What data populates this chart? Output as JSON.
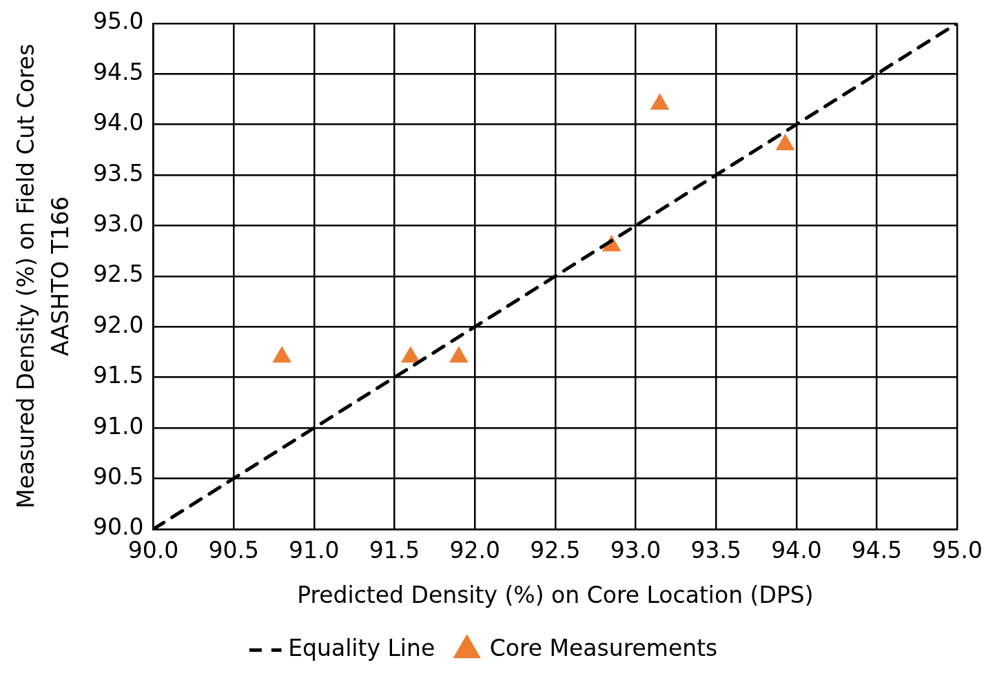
{
  "chart_data": {
    "type": "scatter",
    "xlabel": "Predicted Density (%) on Core Location (DPS)",
    "ylabel": "Measured Density (%) on Field Cut Cores\nAASHTO T166",
    "xlim": [
      90,
      95
    ],
    "ylim": [
      90,
      95
    ],
    "xticks": [
      {
        "value": 90,
        "label": "90.0"
      },
      {
        "value": 90.5,
        "label": "90.5"
      },
      {
        "value": 91,
        "label": "91.0"
      },
      {
        "value": 91.5,
        "label": "91.5"
      },
      {
        "value": 92,
        "label": "92.0"
      },
      {
        "value": 92.5,
        "label": "92.5"
      },
      {
        "value": 93,
        "label": "93.0"
      },
      {
        "value": 93.5,
        "label": "93.5"
      },
      {
        "value": 94,
        "label": "94.0"
      },
      {
        "value": 94.5,
        "label": "94.5"
      },
      {
        "value": 95,
        "label": "95.0"
      }
    ],
    "yticks": [
      {
        "value": 90,
        "label": "90.0"
      },
      {
        "value": 90.5,
        "label": "90.5"
      },
      {
        "value": 91,
        "label": "91.0"
      },
      {
        "value": 91.5,
        "label": "91.5"
      },
      {
        "value": 92,
        "label": "92.0"
      },
      {
        "value": 92.5,
        "label": "92.5"
      },
      {
        "value": 93,
        "label": "93.0"
      },
      {
        "value": 93.5,
        "label": "93.5"
      },
      {
        "value": 94,
        "label": "94.0"
      },
      {
        "value": 94.5,
        "label": "94.5"
      },
      {
        "value": 95,
        "label": "95.0"
      }
    ],
    "grid": true,
    "legend": "bottom",
    "series": [
      {
        "name": "Equality Line",
        "type": "line",
        "color": "#000000",
        "line_style": "dashed",
        "marker": "none",
        "x": [
          90,
          95
        ],
        "values": [
          90,
          95
        ]
      },
      {
        "name": "Core Measurements",
        "type": "scatter",
        "color": "#ed7d31",
        "marker": "triangle",
        "x": [
          90.8,
          91.6,
          91.9,
          92.85,
          93.15,
          93.93
        ],
        "values": [
          91.7,
          91.7,
          91.7,
          92.8,
          94.2,
          93.8
        ]
      }
    ]
  }
}
